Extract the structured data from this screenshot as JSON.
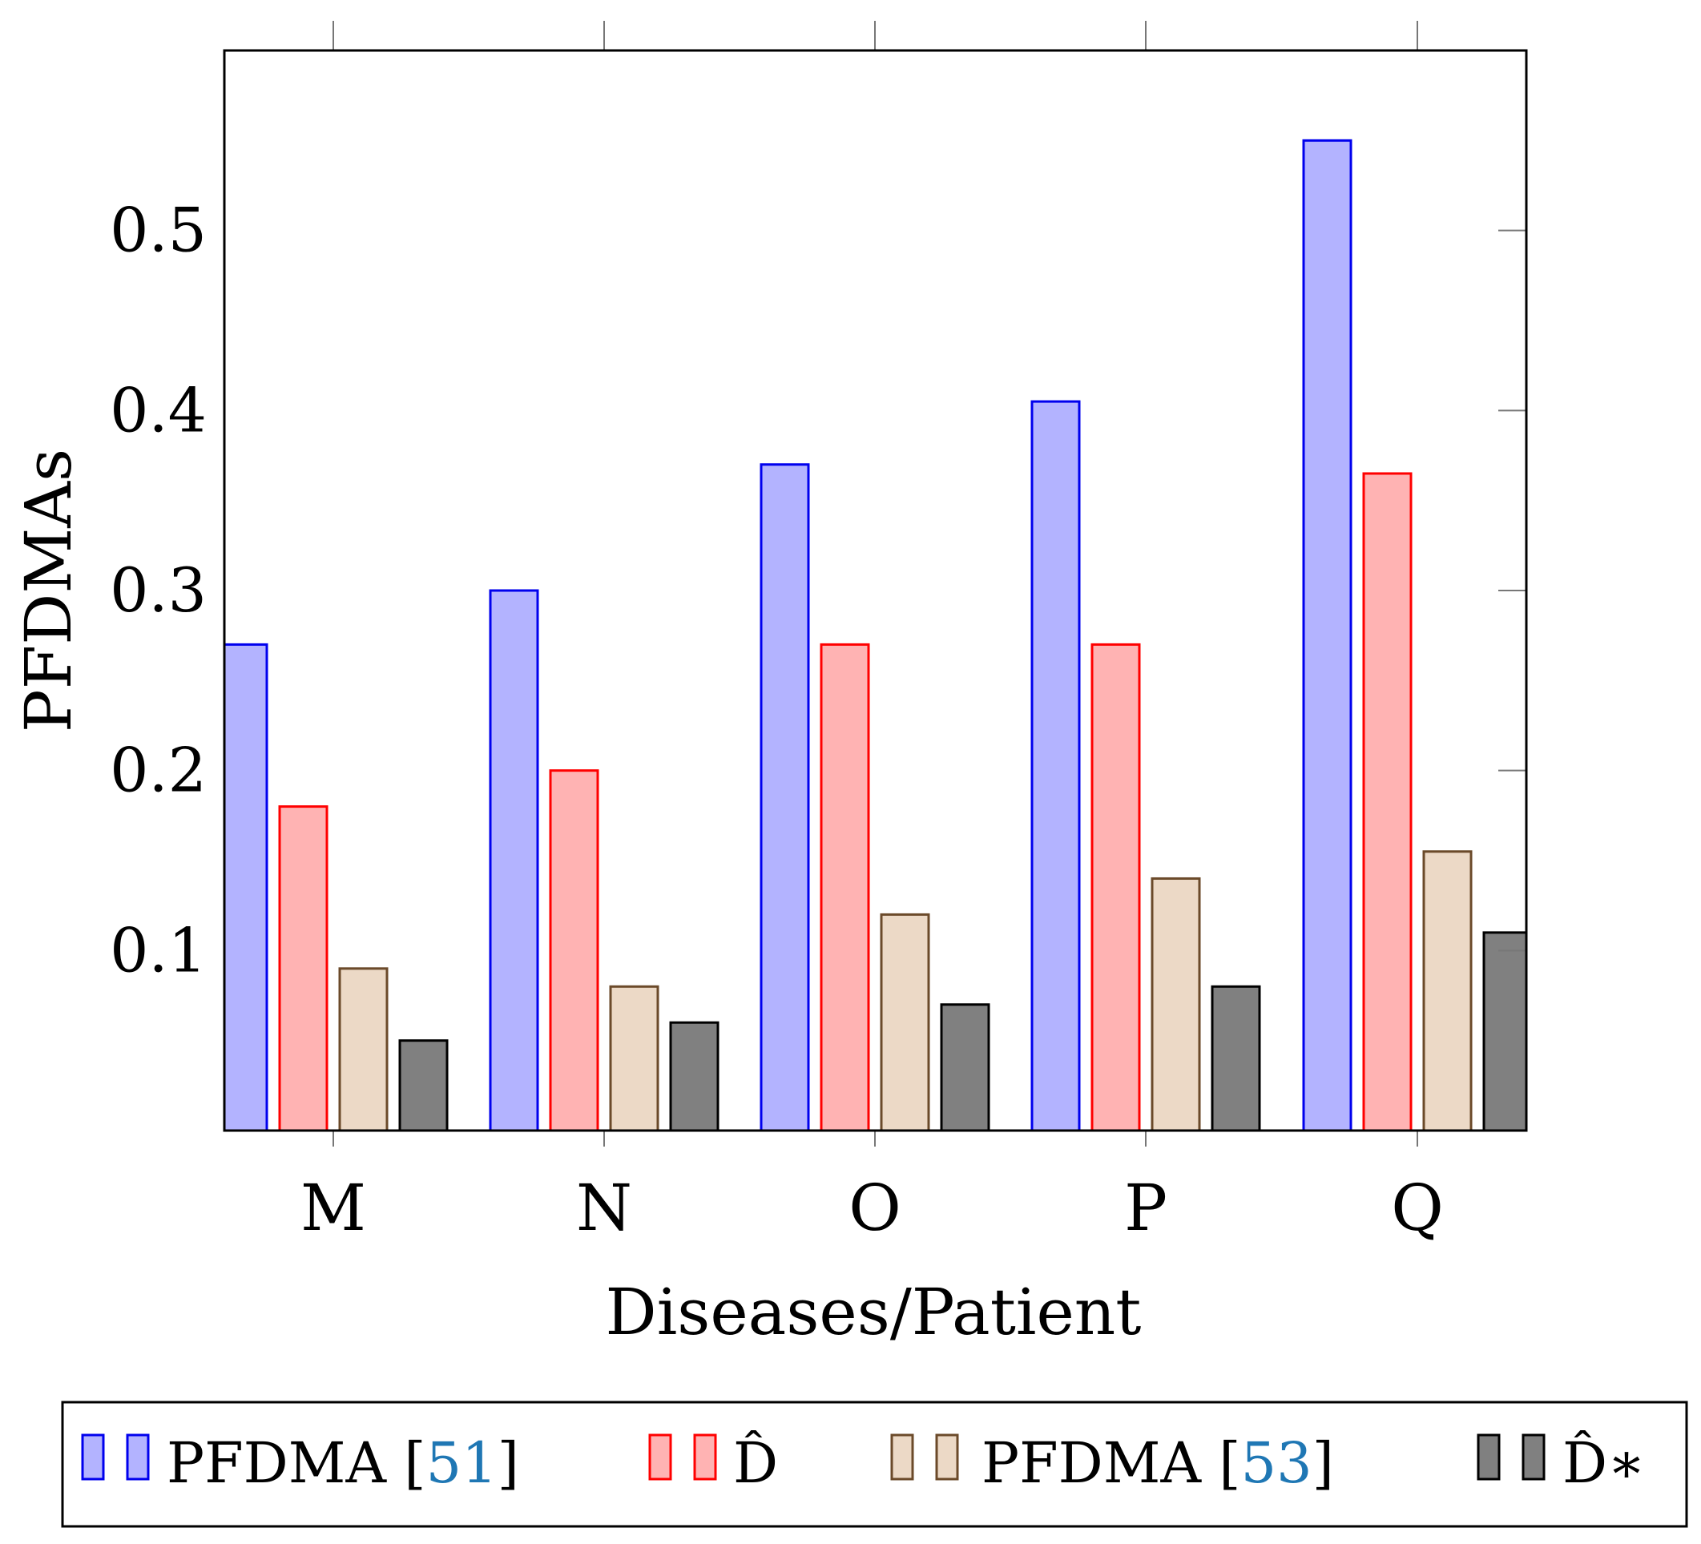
{
  "chart_data": {
    "type": "bar",
    "title": "",
    "xlabel": "Diseases/Patient",
    "ylabel": "PFDMAs",
    "ylim": [
      0,
      0.6
    ],
    "yticks": [
      0.1,
      0.2,
      0.3,
      0.4,
      0.5
    ],
    "ytick_labels": [
      "0.1",
      "0.2",
      "0.3",
      "0.4",
      "0.5"
    ],
    "categories": [
      "M",
      "N",
      "O",
      "P",
      "Q"
    ],
    "grid": false,
    "legend_position": "bottom",
    "series": [
      {
        "name": "PFDMA",
        "ref": "51",
        "values": [
          0.27,
          0.3,
          0.37,
          0.405,
          0.55
        ],
        "fill": "#b3b3ff",
        "stroke": "#0000ee"
      },
      {
        "name": "D̂",
        "ref": "",
        "values": [
          0.18,
          0.2,
          0.27,
          0.27,
          0.365
        ],
        "fill": "#ffb3b3",
        "stroke": "#ff0000"
      },
      {
        "name": "PFDMA",
        "ref": "53",
        "values": [
          0.09,
          0.08,
          0.12,
          0.14,
          0.155
        ],
        "fill": "#ecd9c6",
        "stroke": "#6b4a2a"
      },
      {
        "name": "D̂∗",
        "ref": "",
        "values": [
          0.05,
          0.06,
          0.07,
          0.08,
          0.11
        ],
        "fill": "#808080",
        "stroke": "#000000"
      }
    ]
  },
  "colors": {
    "ref_link": "#1f77b4"
  }
}
